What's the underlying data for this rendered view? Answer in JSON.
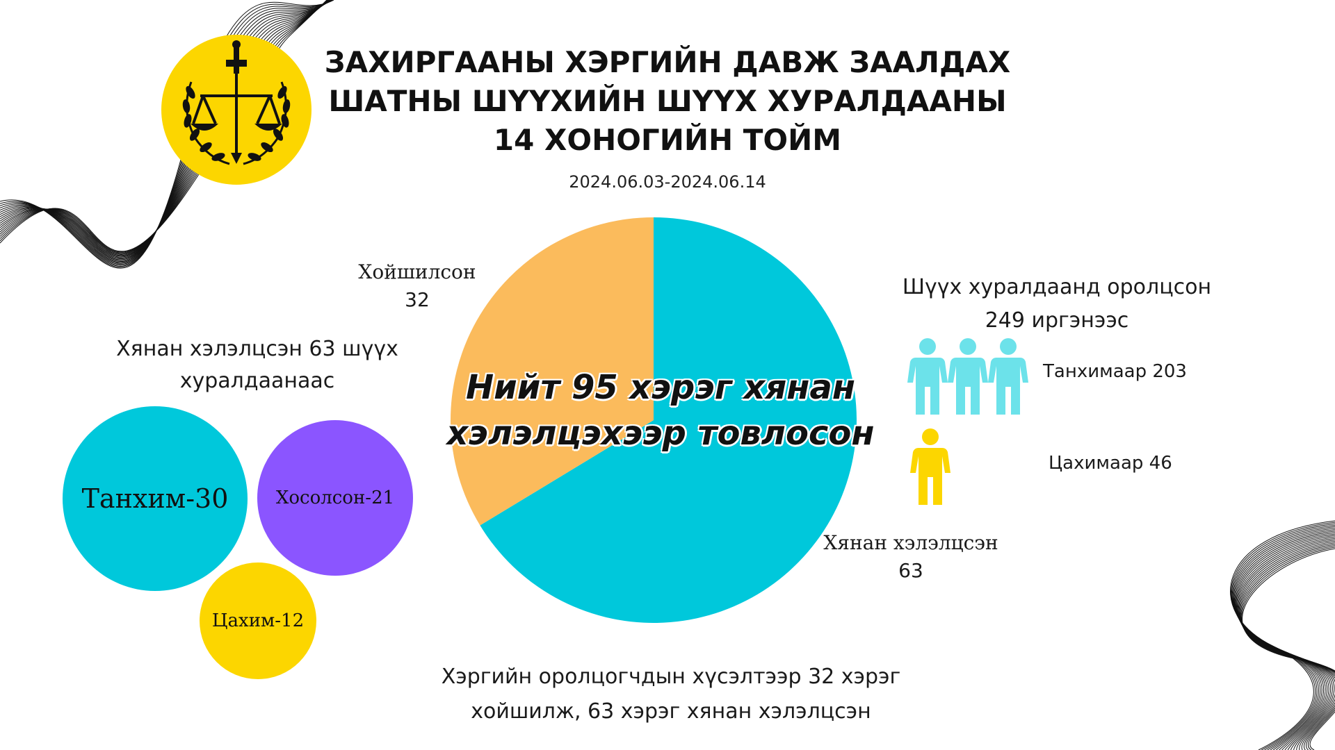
{
  "header": {
    "title_line1": "ЗАХИРГААНЫ ХЭРГИЙН ДАВЖ ЗААЛДАХ",
    "title_line2": "ШАТНЫ ШҮҮХИЙН ШҮҮХ ХУРАЛДААНЫ",
    "title_line3": "14 ХОНОГИЙН ТОЙМ",
    "date_range": "2024.06.03-2024.06.14"
  },
  "colors": {
    "cyan": "#00C8DB",
    "orange": "#FBBB5C",
    "purple": "#8B55FF",
    "yellow": "#FCD600",
    "light_cyan": "#6CE2EA",
    "emblem_gold": "#FCD600"
  },
  "icons": [
    "court-emblem-icon",
    "person-icon"
  ],
  "pie": {
    "center_line1": "Нийт 95 хэрэг хянан",
    "center_line2": "хэлэлцэхээр товлосон",
    "postponed_label": "Хойшилсон",
    "postponed_value": "32",
    "reviewed_label": "Хянан хэлэлцсэн",
    "reviewed_value": "63"
  },
  "sessions": {
    "caption_line1": "Хянан хэлэлцсэн 63 шүүх",
    "caption_line2": "хуралдаанаас",
    "hall": "Танхим-30",
    "mixed": "Хосолсон-21",
    "online": "Цахим-12"
  },
  "participants": {
    "caption_line1": "Шүүх хуралдаанд оролцсон",
    "caption_line2": "249 иргэнээс",
    "hall_label": "Танхимаар 203",
    "online_label": "Цахимаар 46"
  },
  "footer": {
    "line1": "Хэргийн оролцогчдын хүсэлтээр 32 хэрэг",
    "line2": "хойшилж, 63 хэрэг хянан хэлэлцсэн"
  },
  "chart_data": [
    {
      "type": "pie",
      "title": "Нийт 95 хэрэг хянан хэлэлцэхээр товлосон",
      "slices": [
        {
          "label": "Хянан хэлэлцсэн",
          "value": 63,
          "color": "#00C8DB"
        },
        {
          "label": "Хойшилсон",
          "value": 32,
          "color": "#FBBB5C"
        }
      ]
    },
    {
      "type": "bubble",
      "title": "Хянан хэлэлцсэн 63 шүүх хуралдаанаас",
      "slices": [
        {
          "label": "Танхим",
          "value": 30,
          "color": "#00C8DB"
        },
        {
          "label": "Хосолсон",
          "value": 21,
          "color": "#8B55FF"
        },
        {
          "label": "Цахим",
          "value": 12,
          "color": "#FCD600"
        }
      ]
    },
    {
      "type": "pictogram",
      "title": "Шүүх хуралдаанд оролцсон 249 иргэнээс",
      "slices": [
        {
          "label": "Танхимаар",
          "value": 203,
          "color": "#6CE2EA"
        },
        {
          "label": "Цахимаар",
          "value": 46,
          "color": "#FCD600"
        }
      ]
    }
  ]
}
